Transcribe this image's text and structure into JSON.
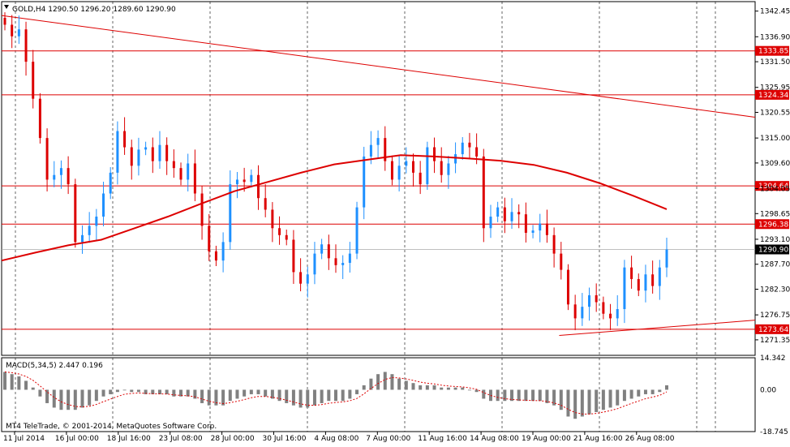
{
  "header": {
    "symbol_line": "GOLD,H4  1290.50 1296.20 1289.60 1290.90",
    "dropdown_icon": "triangle-down-icon"
  },
  "macd": {
    "label": "MACD(5,34,5) 2.447 0.196",
    "copyright": "MT4 TeleTrade, © 2001-2014, MetaQuotes Software Corp."
  },
  "colors": {
    "bull": "#1e90ff",
    "bear": "#dd0000",
    "ma": "#dd0000",
    "hline": "#dd0000",
    "grid": "#000000",
    "macd_hist": "#808080",
    "macd_signal": "#dd0000",
    "price_tag_bg": "#dd0000",
    "current_tag_bg": "#000000"
  },
  "chart_data": [
    {
      "type": "candlestick",
      "series": [
        {
          "name": "GOLD,H4"
        }
      ],
      "y_range": [
        1268.0,
        1344.5
      ],
      "y_ticks": [
        "1342.45",
        "1336.90",
        "1331.50",
        "1325.95",
        "1320.55",
        "1315.00",
        "1309.60",
        "1304.05",
        "1298.65",
        "1293.10",
        "1287.70",
        "1282.30",
        "1276.75",
        "1271.35"
      ],
      "horizontal_levels": [
        {
          "value": 1333.85,
          "label": "1333.85"
        },
        {
          "value": 1324.34,
          "label": "1324.34"
        },
        {
          "value": 1304.64,
          "label": "1304.64"
        },
        {
          "value": 1296.38,
          "label": "1296.38"
        },
        {
          "value": 1273.64,
          "label": "1273.64"
        }
      ],
      "current_price": {
        "value": 1290.9,
        "label": "1290.90"
      },
      "trendlines": [
        {
          "from": [
            0,
            1341.5
          ],
          "to": [
            1.0,
            1319.5
          ]
        },
        {
          "from": [
            0.74,
            1272.3
          ],
          "to": [
            1.0,
            1275.6
          ]
        }
      ],
      "moving_average": [
        1288.5,
        1290.2,
        1291.8,
        1293.0,
        1295.5,
        1298.0,
        1300.8,
        1303.5,
        1305.5,
        1307.5,
        1309.3,
        1310.3,
        1311.3,
        1311.0,
        1310.6,
        1310.1,
        1309.2,
        1307.5,
        1305.2,
        1302.5,
        1299.6
      ],
      "x_labels": [
        "11 Jul 2014",
        "16 Jul 00:00",
        "18 Jul 16:00",
        "23 Jul 08:00",
        "28 Jul 00:00",
        "30 Jul 16:00",
        "4 Aug 08:00",
        "7 Aug 00:00",
        "11 Aug 16:00",
        "14 Aug 08:00",
        "19 Aug 00:00",
        "21 Aug 16:00",
        "26 Aug 08:00"
      ],
      "closes": [
        1339.5,
        1337.0,
        1338.5,
        1331.5,
        1323.5,
        1315.0,
        1306.0,
        1307.0,
        1308.5,
        1305.0,
        1292.5,
        1294.0,
        1296.0,
        1298.0,
        1303.0,
        1307.5,
        1316.5,
        1313.0,
        1309.0,
        1312.5,
        1313.0,
        1310.0,
        1313.5,
        1310.0,
        1308.5,
        1306.0,
        1309.5,
        1303.0,
        1296.0,
        1290.5,
        1288.5,
        1292.5,
        1305.0,
        1306.0,
        1305.5,
        1307.0,
        1302.0,
        1299.5,
        1295.5,
        1294.0,
        1293.0,
        1286.0,
        1283.5,
        1285.5,
        1290.0,
        1292.0,
        1289.0,
        1287.5,
        1288.0,
        1290.0,
        1300.0,
        1311.0,
        1313.5,
        1315.0,
        1310.0,
        1306.0,
        1309.0,
        1310.0,
        1307.5,
        1305.0,
        1313.0,
        1310.0,
        1307.0,
        1309.5,
        1311.5,
        1314.0,
        1313.0,
        1311.0,
        1295.5,
        1298.0,
        1300.0,
        1297.0,
        1299.0,
        1298.5,
        1294.5,
        1295.0,
        1296.5,
        1294.0,
        1290.0,
        1286.5,
        1279.0,
        1276.0,
        1278.5,
        1281.0,
        1279.5,
        1277.0,
        1276.0,
        1278.0,
        1287.0,
        1284.5,
        1282.0,
        1285.5,
        1283.0,
        1287.0,
        1290.9
      ],
      "macd_hist": [
        8,
        7,
        6,
        4,
        1,
        -3,
        -6,
        -8,
        -9,
        -9,
        -9,
        -8,
        -7,
        -5,
        -3,
        -2,
        -1,
        0,
        -1,
        -1,
        -2,
        -2,
        -2,
        -2,
        -3,
        -3,
        -3,
        -4,
        -6,
        -7,
        -7,
        -7,
        -5,
        -4,
        -3,
        -2,
        -2,
        -3,
        -4,
        -5,
        -6,
        -7,
        -8,
        -8,
        -7,
        -6,
        -5,
        -5,
        -5,
        -4,
        -2,
        2,
        5,
        7,
        8,
        7,
        5,
        4,
        3,
        2,
        2,
        2,
        1,
        1,
        1,
        1,
        0,
        -1,
        -4,
        -5,
        -5,
        -5,
        -5,
        -5,
        -5,
        -5,
        -5,
        -6,
        -7,
        -9,
        -12,
        -13,
        -12,
        -11,
        -10,
        -9,
        -8,
        -7,
        -5,
        -4,
        -3,
        -2,
        -2,
        -1,
        2
      ],
      "macd_range": [
        -18.745,
        14.342
      ],
      "macd_ticks": [
        "14.342",
        "0.00",
        "-18.745"
      ]
    }
  ]
}
